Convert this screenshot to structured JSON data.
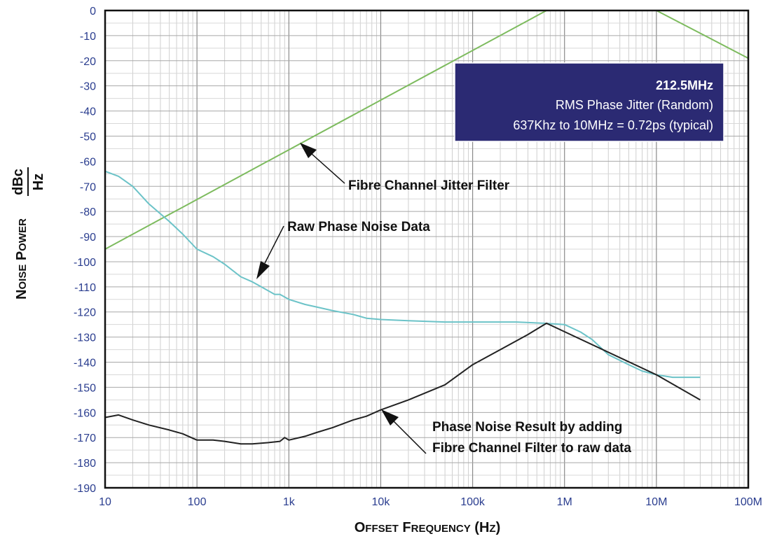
{
  "chart_data": {
    "type": "line",
    "x_scale": "log",
    "y_scale": "linear",
    "xlim": [
      10,
      100000000
    ],
    "ylim": [
      -190,
      0
    ],
    "grid": true,
    "xlabel": "Offset Frequency (Hz)",
    "ylabel": "Noise Power",
    "ylabel_unit_numerator": "dBc",
    "ylabel_unit_denominator": "Hz",
    "x_ticks": [
      10,
      100,
      1000,
      10000,
      100000,
      1000000,
      10000000,
      100000000
    ],
    "x_tick_labels": [
      "10",
      "100",
      "1k",
      "10k",
      "100k",
      "1M",
      "10M",
      "100M"
    ],
    "y_ticks": [
      0,
      -10,
      -20,
      -30,
      -40,
      -50,
      -60,
      -70,
      -80,
      -90,
      -100,
      -110,
      -120,
      -130,
      -140,
      -150,
      -160,
      -170,
      -180,
      -190
    ],
    "y_tick_labels": [
      "0",
      "-10",
      "-20",
      "-30",
      "-40",
      "-50",
      "-60",
      "-70",
      "-80",
      "-90",
      "-100",
      "-110",
      "-120",
      "-130",
      "-140",
      "-150",
      "-160",
      "-170",
      "-180",
      "-190"
    ],
    "series": [
      {
        "name": "Fibre Channel Jitter Filter",
        "color": "#7dbb5e",
        "points": [
          [
            10,
            -95
          ],
          [
            637000,
            0
          ],
          [
            10000000,
            0
          ],
          [
            100000000,
            -19
          ]
        ]
      },
      {
        "name": "Raw Phase Noise Data",
        "color": "#6cc3c8",
        "points": [
          [
            10,
            -64
          ],
          [
            14,
            -66
          ],
          [
            20,
            -70
          ],
          [
            30,
            -77
          ],
          [
            50,
            -84
          ],
          [
            70,
            -89
          ],
          [
            100,
            -95
          ],
          [
            150,
            -98
          ],
          [
            200,
            -101
          ],
          [
            300,
            -106
          ],
          [
            400,
            -108
          ],
          [
            500,
            -110
          ],
          [
            700,
            -113
          ],
          [
            800,
            -113
          ],
          [
            1000,
            -115
          ],
          [
            1500,
            -117
          ],
          [
            2000,
            -118
          ],
          [
            3000,
            -119.5
          ],
          [
            5000,
            -121
          ],
          [
            7000,
            -122.5
          ],
          [
            10000,
            -123
          ],
          [
            20000,
            -123.5
          ],
          [
            50000,
            -124
          ],
          [
            100000,
            -124
          ],
          [
            300000,
            -124
          ],
          [
            600000,
            -124.5
          ],
          [
            1000000,
            -125
          ],
          [
            1500000,
            -128
          ],
          [
            2000000,
            -131
          ],
          [
            3000000,
            -137
          ],
          [
            5000000,
            -141
          ],
          [
            7000000,
            -143.5
          ],
          [
            10000000,
            -145
          ],
          [
            15000000,
            -146
          ],
          [
            30000000,
            -146
          ]
        ]
      },
      {
        "name": "Phase Noise Result by adding Fibre Channel Filter to raw data",
        "color": "#222222",
        "points": [
          [
            10,
            -162
          ],
          [
            14,
            -161
          ],
          [
            20,
            -163
          ],
          [
            30,
            -165
          ],
          [
            50,
            -167
          ],
          [
            70,
            -168.5
          ],
          [
            100,
            -171
          ],
          [
            150,
            -171
          ],
          [
            200,
            -171.5
          ],
          [
            300,
            -172.5
          ],
          [
            400,
            -172.5
          ],
          [
            600,
            -172
          ],
          [
            800,
            -171.5
          ],
          [
            900,
            -170
          ],
          [
            1000,
            -171
          ],
          [
            1500,
            -169.5
          ],
          [
            2000,
            -168
          ],
          [
            3000,
            -166
          ],
          [
            5000,
            -163
          ],
          [
            7000,
            -161.5
          ],
          [
            10000,
            -159
          ],
          [
            20000,
            -155
          ],
          [
            50000,
            -149
          ],
          [
            100000,
            -141
          ],
          [
            200000,
            -135
          ],
          [
            400000,
            -129
          ],
          [
            637000,
            -124.5
          ],
          [
            10000000,
            -145
          ],
          [
            30000000,
            -155
          ]
        ]
      }
    ],
    "annotations": [
      {
        "text": "Fibre Channel Jitter Filter",
        "arrow_to": [
          1100,
          -53
        ]
      },
      {
        "text": "Raw Phase Noise Data",
        "arrow_to": [
          410,
          -108
        ]
      },
      {
        "text_lines": [
          "Phase Noise Result by adding",
          "Fibre Channel Filter to raw data"
        ],
        "arrow_to": [
          11000,
          -158
        ]
      }
    ],
    "info_box": {
      "title": "212.5MHz",
      "line1": "RMS Phase Jitter  (Random)",
      "line2": "637Khz to 10MHz = 0.72ps (typical)",
      "background": "#2b2a73"
    }
  }
}
